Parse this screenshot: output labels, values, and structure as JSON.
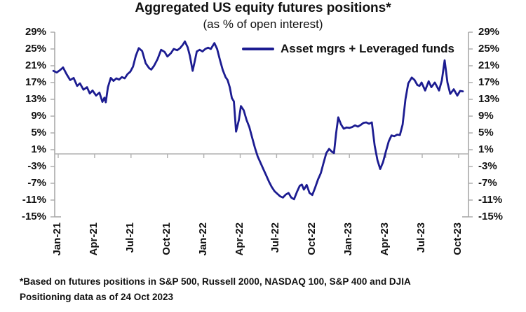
{
  "footnotes": [
    "*Based on futures positions in S&P 500, Russell 2000, NASDAQ 100, S&P 400 and DJIA",
    "Positioning data as of 24 Oct 2023"
  ],
  "colors": {
    "line": "#1c1c91",
    "axis": "#a8a8a8",
    "zero_line": "#b0b0b0",
    "text": "#111111",
    "background": "#ffffff"
  },
  "chart_data": {
    "type": "line",
    "title": "Aggregated US equity futures positions*",
    "subtitle": "(as % of open interest)",
    "legend": {
      "label": "Asset mgrs + Leveraged funds",
      "position": "top-right-inside"
    },
    "grid": "zero-line-only",
    "y_axis": {
      "unit": "%",
      "min": -15,
      "max": 29,
      "tick_step": 4,
      "tick_values": [
        29,
        25,
        21,
        17,
        13,
        9,
        5,
        1,
        -3,
        -7,
        -11,
        -15
      ],
      "sides": [
        "left",
        "right"
      ]
    },
    "x_axis": {
      "tick_labels": [
        "Jan-21",
        "Apr-21",
        "Jul-21",
        "Oct-21",
        "Jan-22",
        "Apr-22",
        "Jul-22",
        "Oct-22",
        "Jan-23",
        "Apr-23",
        "Jul-23",
        "Oct-23"
      ],
      "labels_rotated_degrees": 90,
      "points_time_unit": "months since Jan-2021 (weekly data)"
    },
    "series": [
      {
        "name": "Asset mgrs + Leveraged funds",
        "color": "#1c1c91",
        "points": [
          [
            -0.4,
            19.8
          ],
          [
            -0.12,
            19.4
          ],
          [
            0.17,
            20
          ],
          [
            0.4,
            20.6
          ],
          [
            0.69,
            19
          ],
          [
            0.98,
            17.6
          ],
          [
            1.27,
            18.1
          ],
          [
            1.56,
            16.2
          ],
          [
            1.79,
            16.8
          ],
          [
            2.08,
            15.3
          ],
          [
            2.37,
            15.9
          ],
          [
            2.6,
            14.4
          ],
          [
            2.83,
            15.1
          ],
          [
            3.12,
            13.9
          ],
          [
            3.4,
            14.6
          ],
          [
            3.64,
            12.4
          ],
          [
            3.81,
            13.4
          ],
          [
            3.92,
            12.3
          ],
          [
            4.1,
            15.9
          ],
          [
            4.33,
            18.1
          ],
          [
            4.56,
            17.4
          ],
          [
            4.79,
            18
          ],
          [
            5.02,
            17.7
          ],
          [
            5.25,
            18.3
          ],
          [
            5.48,
            18
          ],
          [
            5.71,
            19
          ],
          [
            5.94,
            19.6
          ],
          [
            6.17,
            20.8
          ],
          [
            6.4,
            23.4
          ],
          [
            6.64,
            25.2
          ],
          [
            6.92,
            24.5
          ],
          [
            7.21,
            21.6
          ],
          [
            7.5,
            20.4
          ],
          [
            7.67,
            20.1
          ],
          [
            7.9,
            21
          ],
          [
            8.19,
            22.6
          ],
          [
            8.48,
            24.8
          ],
          [
            8.77,
            24.3
          ],
          [
            9,
            23.2
          ],
          [
            9.29,
            24
          ],
          [
            9.52,
            25
          ],
          [
            9.81,
            24.7
          ],
          [
            10.04,
            25.2
          ],
          [
            10.27,
            26
          ],
          [
            10.44,
            26.8
          ],
          [
            10.67,
            25.4
          ],
          [
            10.85,
            23.4
          ],
          [
            11.08,
            19.8
          ],
          [
            11.25,
            22
          ],
          [
            11.42,
            24.4
          ],
          [
            11.66,
            24.8
          ],
          [
            11.89,
            24.4
          ],
          [
            12.12,
            25
          ],
          [
            12.35,
            25.3
          ],
          [
            12.58,
            25
          ],
          [
            12.87,
            26.4
          ],
          [
            13.1,
            25
          ],
          [
            13.33,
            22.4
          ],
          [
            13.56,
            20
          ],
          [
            13.79,
            18.3
          ],
          [
            13.96,
            17.6
          ],
          [
            14.14,
            15.9
          ],
          [
            14.31,
            13.3
          ],
          [
            14.48,
            12.5
          ],
          [
            14.66,
            5.3
          ],
          [
            14.89,
            8.1
          ],
          [
            15.06,
            11.4
          ],
          [
            15.29,
            10.4
          ],
          [
            15.52,
            8.1
          ],
          [
            15.75,
            6.4
          ],
          [
            15.98,
            3.9
          ],
          [
            16.21,
            1.5
          ],
          [
            16.44,
            -0.6
          ],
          [
            16.67,
            -2.1
          ],
          [
            16.9,
            -3.6
          ],
          [
            17.14,
            -5.1
          ],
          [
            17.37,
            -6.6
          ],
          [
            17.6,
            -7.9
          ],
          [
            17.83,
            -8.9
          ],
          [
            18.06,
            -9.5
          ],
          [
            18.29,
            -10.1
          ],
          [
            18.52,
            -10.4
          ],
          [
            18.75,
            -9.7
          ],
          [
            18.98,
            -9.3
          ],
          [
            19.21,
            -10.4
          ],
          [
            19.44,
            -10.8
          ],
          [
            19.67,
            -9.1
          ],
          [
            19.91,
            -7.6
          ],
          [
            20.08,
            -7.3
          ],
          [
            20.25,
            -8.5
          ],
          [
            20.48,
            -7.4
          ],
          [
            20.71,
            -9.3
          ],
          [
            20.94,
            -9.8
          ],
          [
            21.17,
            -8.1
          ],
          [
            21.41,
            -6.1
          ],
          [
            21.64,
            -4.6
          ],
          [
            21.87,
            -2.1
          ],
          [
            22.1,
            0.2
          ],
          [
            22.33,
            1.2
          ],
          [
            22.56,
            0.5
          ],
          [
            22.73,
            0.2
          ],
          [
            22.91,
            5
          ],
          [
            23.08,
            8.7
          ],
          [
            23.31,
            7
          ],
          [
            23.54,
            6
          ],
          [
            23.77,
            6.3
          ],
          [
            24,
            6.2
          ],
          [
            24.23,
            6.4
          ],
          [
            24.46,
            6.8
          ],
          [
            24.7,
            6.5
          ],
          [
            24.93,
            6.9
          ],
          [
            25.16,
            7.4
          ],
          [
            25.39,
            7.5
          ],
          [
            25.62,
            7.2
          ],
          [
            25.85,
            7.5
          ],
          [
            26.08,
            2
          ],
          [
            26.31,
            -1.5
          ],
          [
            26.54,
            -3.6
          ],
          [
            26.77,
            -2
          ],
          [
            27,
            0.5
          ],
          [
            27.24,
            3
          ],
          [
            27.47,
            4.4
          ],
          [
            27.7,
            4.2
          ],
          [
            27.93,
            4.6
          ],
          [
            28.16,
            4.5
          ],
          [
            28.39,
            7
          ],
          [
            28.62,
            13
          ],
          [
            28.85,
            16.8
          ],
          [
            29.14,
            18.2
          ],
          [
            29.37,
            17.6
          ],
          [
            29.6,
            16.4
          ],
          [
            29.78,
            16.2
          ],
          [
            29.95,
            17
          ],
          [
            30.24,
            15.1
          ],
          [
            30.53,
            17.3
          ],
          [
            30.76,
            15.9
          ],
          [
            31.04,
            17
          ],
          [
            31.39,
            15.1
          ],
          [
            31.62,
            17.5
          ],
          [
            31.85,
            22.3
          ],
          [
            32.08,
            17
          ],
          [
            32.31,
            14.3
          ],
          [
            32.6,
            15.4
          ],
          [
            32.89,
            13.9
          ],
          [
            33.12,
            15
          ],
          [
            33.35,
            14.9
          ]
        ]
      }
    ]
  }
}
